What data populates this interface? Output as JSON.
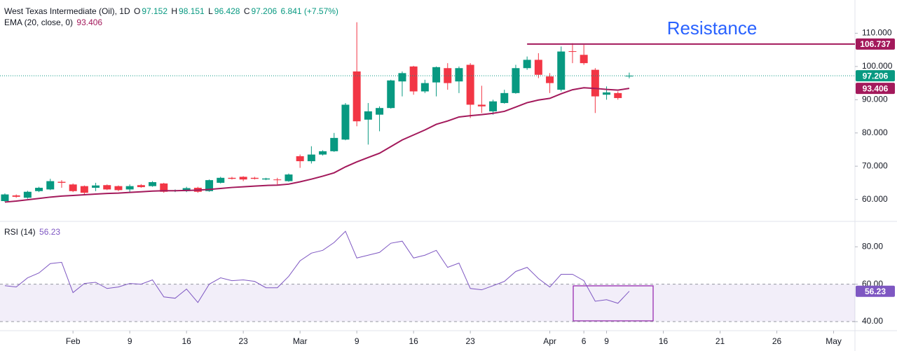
{
  "header": {
    "symbol": "West Texas Intermediate (Oil), 1D",
    "o": "O",
    "h": "H",
    "l": "L",
    "c": "C",
    "change": "6.841 (+7.57%)"
  },
  "chart_data": [
    {
      "type": "candlestick",
      "up_color": "#089981",
      "down_color": "#f23645",
      "open": [
        59.5,
        61.2,
        60.5,
        62.5,
        63.0,
        65.3,
        64.5,
        64.0,
        63.5,
        64.3,
        64.0,
        63.0,
        64.3,
        64.0,
        64.8,
        62.6,
        62.5,
        63.5,
        62.5,
        65.0,
        66.5,
        66.8,
        66.5,
        66.0,
        66.0,
        65.5,
        73.0,
        71.5,
        73.5,
        74.5,
        78.0,
        98.5,
        84.0,
        85.5,
        87.5,
        95.5,
        100.0,
        92.5,
        95.2,
        99.5,
        95.5,
        100.5,
        88.5,
        86.5,
        89.0,
        92.0,
        99.5,
        102.0,
        97.0,
        93.0,
        104.6,
        103.5,
        99.0,
        91.5,
        92.0,
        97.152
      ],
      "high": [
        61.8,
        61.5,
        62.6,
        63.8,
        66.2,
        65.8,
        64.8,
        64.2,
        65.0,
        64.5,
        64.2,
        64.5,
        64.6,
        65.5,
        65.0,
        63.0,
        63.8,
        63.8,
        66.0,
        66.8,
        66.8,
        67.0,
        66.8,
        66.5,
        66.5,
        67.8,
        73.5,
        76.0,
        74.8,
        80.0,
        89.0,
        113.3,
        89.0,
        88.0,
        96.0,
        98.5,
        100.2,
        96.0,
        100.0,
        101.0,
        100.0,
        101.0,
        94.2,
        90.0,
        93.0,
        100.5,
        103.0,
        104.0,
        98.0,
        106.0,
        107.0,
        106.5,
        99.5,
        94.0,
        92.5,
        98.151
      ],
      "low": [
        59.3,
        60.5,
        60.2,
        62.2,
        62.8,
        63.5,
        62.2,
        61.5,
        62.5,
        62.8,
        62.5,
        62.0,
        63.5,
        63.8,
        62.0,
        62.2,
        62.2,
        62.0,
        62.3,
        64.8,
        66.0,
        65.5,
        66.0,
        65.8,
        64.5,
        65.3,
        69.5,
        70.8,
        73.2,
        74.3,
        77.8,
        82.0,
        76.5,
        80.5,
        87.3,
        91.0,
        91.5,
        92.0,
        91.0,
        93.0,
        92.0,
        84.5,
        86.0,
        85.5,
        88.8,
        91.8,
        99.0,
        96.5,
        92.0,
        92.5,
        101.0,
        100.5,
        86.0,
        90.0,
        90.0,
        96.428
      ],
      "close": [
        61.5,
        60.8,
        62.3,
        63.5,
        65.5,
        65.0,
        62.5,
        62.0,
        64.2,
        63.0,
        62.8,
        64.0,
        63.7,
        65.2,
        62.3,
        62.7,
        63.4,
        62.3,
        65.8,
        66.5,
        66.2,
        66.0,
        66.2,
        66.3,
        65.8,
        67.5,
        71.5,
        73.5,
        74.5,
        78.5,
        88.5,
        83.5,
        86.5,
        87.5,
        95.8,
        98.0,
        92.5,
        95.0,
        99.8,
        95.0,
        99.5,
        88.5,
        88.0,
        89.5,
        92.0,
        99.5,
        102.0,
        97.5,
        95.0,
        104.5,
        104.4,
        101.0,
        91.0,
        92.2,
        90.5,
        97.206
      ],
      "ema": {
        "name": "EMA (20, close, 0)",
        "color": "#a3195b",
        "values": [
          59.2,
          59.5,
          59.9,
          60.3,
          60.7,
          61.0,
          61.2,
          61.4,
          61.6,
          61.8,
          61.9,
          62.1,
          62.3,
          62.5,
          62.6,
          62.6,
          62.7,
          62.8,
          63.0,
          63.3,
          63.6,
          63.8,
          64.0,
          64.2,
          64.3,
          64.6,
          65.3,
          66.1,
          67.0,
          68.0,
          69.8,
          71.3,
          72.6,
          73.9,
          75.9,
          77.9,
          79.4,
          80.9,
          82.6,
          83.6,
          84.8,
          85.2,
          85.5,
          85.9,
          86.5,
          87.8,
          89.1,
          89.9,
          90.4,
          91.8,
          93.0,
          93.6,
          93.4,
          93.1,
          92.9,
          93.406
        ]
      },
      "resistance": {
        "label": "Resistance",
        "value": 106.737,
        "value_label": "106.737",
        "color": "#a3195b",
        "start": 46,
        "text_color": "#2962ff"
      },
      "xlim": [
        -0.43,
        74.88
      ],
      "ylim": [
        53.6,
        120.0
      ],
      "yticks": [
        {
          "value": 60,
          "label": "60.000"
        },
        {
          "value": 70,
          "label": "70.000"
        },
        {
          "value": 80,
          "label": "80.000"
        },
        {
          "value": 90,
          "label": "90.000"
        },
        {
          "value": 100,
          "label": "100.000"
        },
        {
          "value": 110,
          "label": "110.000"
        }
      ],
      "xticks": [
        {
          "value": 6,
          "label": "Feb"
        },
        {
          "value": 11,
          "label": "9"
        },
        {
          "value": 16,
          "label": "16"
        },
        {
          "value": 21,
          "label": "23"
        },
        {
          "value": 26,
          "label": "Mar"
        },
        {
          "value": 31,
          "label": "9"
        },
        {
          "value": 36,
          "label": "16"
        },
        {
          "value": 41,
          "label": "23"
        },
        {
          "value": 48,
          "label": "Apr"
        },
        {
          "value": 51,
          "label": "6"
        },
        {
          "value": 53,
          "label": "9"
        },
        {
          "value": 58,
          "label": "16"
        },
        {
          "value": 63,
          "label": "21"
        },
        {
          "value": 68,
          "label": "26"
        },
        {
          "value": 73,
          "label": "May"
        }
      ]
    },
    {
      "type": "line",
      "name": "RSI (14)",
      "color": "#7e57c2",
      "values": [
        59.2,
        58.5,
        63.4,
        66,
        71,
        71.7,
        55.5,
        60.4,
        61,
        57.7,
        58.5,
        60.4,
        60,
        62.3,
        53.2,
        52.5,
        57.4,
        50.2,
        60,
        63.4,
        61.9,
        62.3,
        61.5,
        58.1,
        58.1,
        64.2,
        72.5,
        76.6,
        78.1,
        82.3,
        88.3,
        74,
        75.5,
        77,
        81.9,
        83,
        74,
        75.5,
        78.1,
        69,
        71.3,
        57.7,
        57,
        59.2,
        61.5,
        66.8,
        69,
        63,
        58.5,
        65.3,
        65.3,
        61.9,
        50.9,
        51.7,
        49.8,
        56.23
      ],
      "band": [
        40,
        60
      ],
      "ylim": [
        35.9,
        93.2
      ],
      "yticks": [
        {
          "value": 40,
          "label": "40.00"
        },
        {
          "value": 60,
          "label": "60.00"
        },
        {
          "value": 80,
          "label": "80.00"
        }
      ]
    }
  ]
}
